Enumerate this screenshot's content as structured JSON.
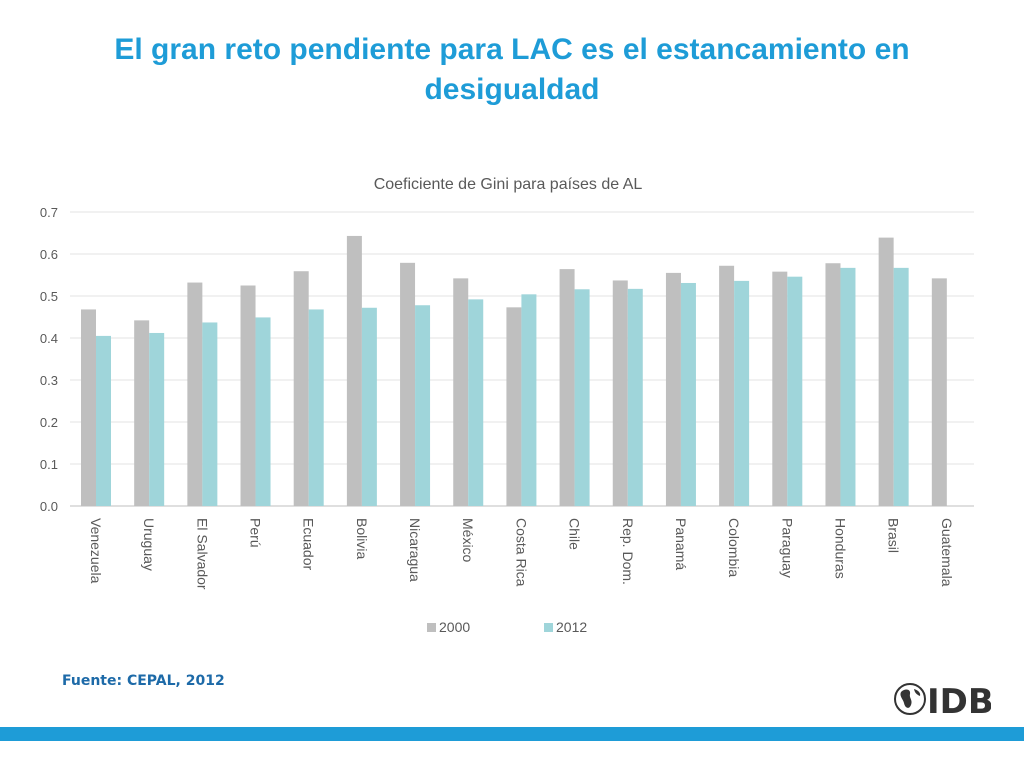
{
  "slide": {
    "title": "El gran reto pendiente para LAC es el estancamiento en desigualdad",
    "source": "Fuente: CEPAL, 2012",
    "logo_text": "IDB"
  },
  "colors": {
    "title": "#1e9cd7",
    "series_2000": "#bfbfbf",
    "series_2012": "#9fd5da",
    "footer_bar": "#1e9cd7"
  },
  "chart_data": {
    "type": "bar",
    "title": "Coeficiente de Gini para países de AL",
    "xlabel": "",
    "ylabel": "",
    "ylim": [
      0,
      0.7
    ],
    "yticks": [
      "0.0",
      "0.1",
      "0.2",
      "0.3",
      "0.4",
      "0.5",
      "0.6",
      "0.7"
    ],
    "grid": true,
    "legend": "bottom",
    "categories": [
      "Venezuela",
      "Uruguay",
      "El Salvador",
      "Perú",
      "Ecuador",
      "Bolivia",
      "Nicaragua",
      "México",
      "Costa Rica",
      "Chile",
      "Rep. Dom.",
      "Panamá",
      "Colombia",
      "Paraguay",
      "Honduras",
      "Brasil",
      "Guatemala"
    ],
    "series": [
      {
        "name": "2000",
        "values": [
          0.468,
          0.442,
          0.532,
          0.525,
          0.559,
          0.643,
          0.579,
          0.542,
          0.473,
          0.564,
          0.537,
          0.555,
          0.572,
          0.558,
          0.578,
          0.639,
          0.542
        ]
      },
      {
        "name": "2012",
        "values": [
          0.405,
          0.412,
          0.437,
          0.449,
          0.468,
          0.472,
          0.478,
          0.492,
          0.504,
          0.516,
          0.517,
          0.531,
          0.536,
          0.546,
          0.567,
          0.567,
          null
        ]
      }
    ]
  }
}
